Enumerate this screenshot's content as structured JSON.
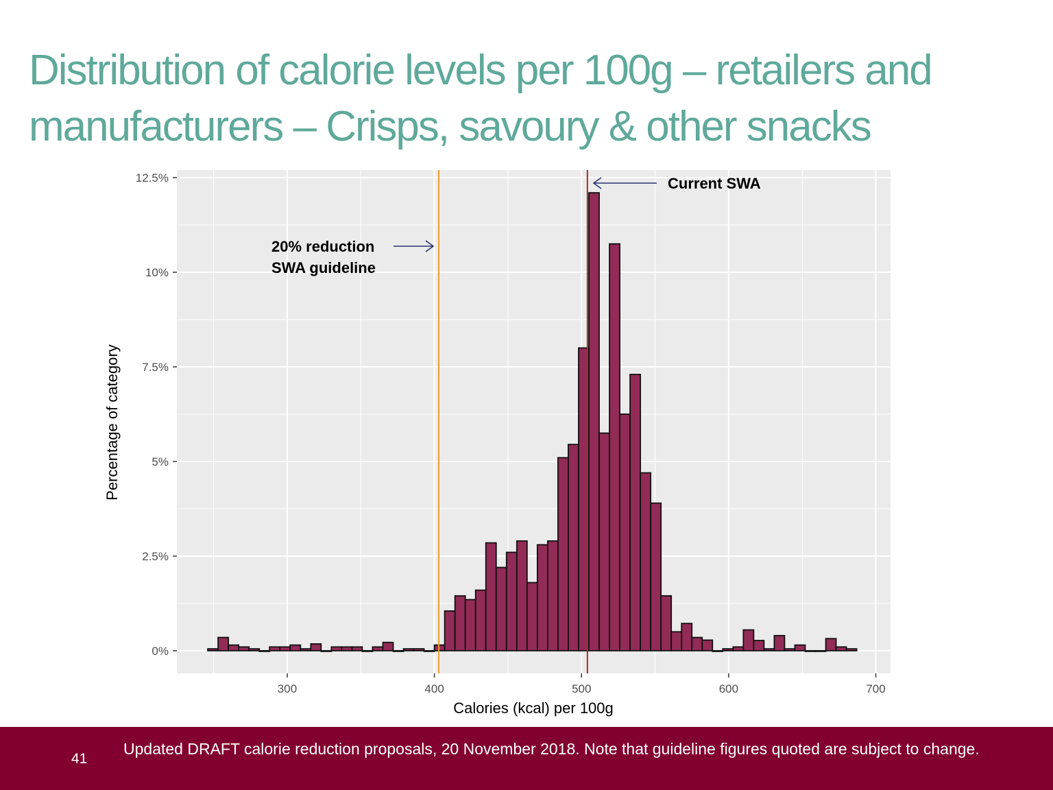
{
  "slide": {
    "title_line1": "Distribution of calorie levels per 100g – retailers and",
    "title_line2": "manufacturers – Crisps, savoury & other snacks",
    "page_number": "41",
    "footer_note": "Updated DRAFT calorie reduction proposals, 20 November 2018. Note that guideline figures quoted are subject to change."
  },
  "colors": {
    "title": "#5fa99a",
    "footer_bg": "#82002f",
    "bar_fill": "#922b55",
    "bar_stroke": "#111111",
    "panel_bg": "#ebebeb",
    "grid": "#ffffff",
    "reduction_line": "#f0a030",
    "current_line": "#a0302c",
    "arrow": "#2b3270"
  },
  "chart_data": {
    "type": "bar",
    "subtype": "histogram",
    "xlabel": "Calories (kcal) per 100g",
    "ylabel": "Percentage of category",
    "xlim": [
      225,
      710
    ],
    "ylim": [
      -0.6,
      12.7
    ],
    "x_ticks": [
      300,
      400,
      500,
      600,
      700
    ],
    "x_tick_labels": [
      "300",
      "400",
      "500",
      "600",
      "700"
    ],
    "y_ticks": [
      0,
      2.5,
      5,
      7.5,
      10,
      12.5
    ],
    "y_tick_labels": [
      "0%",
      "2.5%",
      "5%",
      "7.5%",
      "10%",
      "12.5%"
    ],
    "grid": true,
    "bin_width": 7,
    "bins_start": [
      246,
      253,
      260,
      267,
      274,
      281,
      288,
      295,
      302,
      309,
      316,
      323,
      330,
      337,
      344,
      351,
      358,
      365,
      372,
      379,
      386,
      393,
      400,
      407,
      414,
      421,
      428,
      435,
      442,
      449,
      456,
      463,
      470,
      477,
      484,
      491,
      498,
      505,
      512,
      519,
      526,
      533,
      540,
      547,
      554,
      561,
      568,
      575,
      582,
      589,
      596,
      603,
      610,
      617,
      624,
      631,
      638,
      645,
      652,
      659,
      666,
      673,
      680
    ],
    "values": [
      0.05,
      0.35,
      0.15,
      0.1,
      0.05,
      0.0,
      0.1,
      0.1,
      0.15,
      0.05,
      0.18,
      0.0,
      0.1,
      0.1,
      0.1,
      0.0,
      0.1,
      0.22,
      0.0,
      0.05,
      0.05,
      0.0,
      0.15,
      1.05,
      1.45,
      1.35,
      1.6,
      2.85,
      2.2,
      2.6,
      2.9,
      1.8,
      2.8,
      2.9,
      5.1,
      5.45,
      8.0,
      12.1,
      5.75,
      10.75,
      6.25,
      7.3,
      4.7,
      3.9,
      1.45,
      0.5,
      0.72,
      0.35,
      0.28,
      0.0,
      0.05,
      0.1,
      0.55,
      0.27,
      0.05,
      0.4,
      0.05,
      0.15,
      0.0,
      0.0,
      0.32,
      0.1,
      0.05
    ],
    "extra_bar_values_note": "",
    "vlines": [
      {
        "x": 403,
        "label": "20% reduction\nSWA guideline"
      },
      {
        "x": 504,
        "label": "Current SWA"
      }
    ],
    "annotations": {
      "current_swa": "Current SWA",
      "reduction_line1": "20% reduction",
      "reduction_line2": "SWA guideline"
    }
  }
}
